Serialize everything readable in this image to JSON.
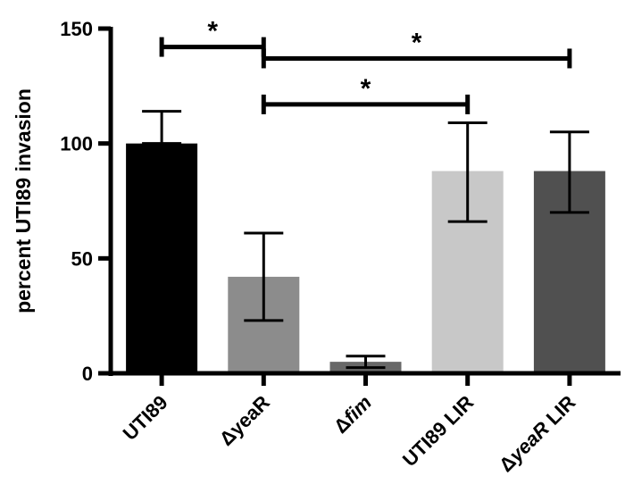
{
  "chart_data": {
    "type": "bar",
    "title": "",
    "xlabel": "",
    "ylabel": "percent UTI89 invasion",
    "ylim": [
      0,
      150
    ],
    "yticks": [
      0,
      50,
      100,
      150
    ],
    "grid": false,
    "categories": [
      {
        "parts": [
          {
            "text": "UTI89",
            "italic": false
          }
        ]
      },
      {
        "parts": [
          {
            "text": "Δ",
            "italic": false
          },
          {
            "text": "yeaR",
            "italic": false
          }
        ]
      },
      {
        "parts": [
          {
            "text": "Δ",
            "italic": false
          },
          {
            "text": "fim",
            "italic": true
          }
        ]
      },
      {
        "parts": [
          {
            "text": "UTI89 LIR",
            "italic": false
          }
        ]
      },
      {
        "parts": [
          {
            "text": "Δ",
            "italic": false
          },
          {
            "text": "yeaR",
            "italic": true
          },
          {
            "text": " LIR",
            "italic": false
          }
        ]
      }
    ],
    "values": [
      100,
      42,
      5,
      88,
      88
    ],
    "errors": [
      {
        "low": 100,
        "high": 114
      },
      {
        "low": 23,
        "high": 61
      },
      {
        "low": 2.5,
        "high": 7.5
      },
      {
        "low": 66,
        "high": 109
      },
      {
        "low": 70,
        "high": 105
      }
    ],
    "colors": [
      "#000000",
      "#8c8c8c",
      "#686868",
      "#c8c8c8",
      "#505050"
    ],
    "significance": [
      {
        "from": 0,
        "to": 1,
        "y": 142,
        "label": "*"
      },
      {
        "from": 1,
        "to": 4,
        "y": 137,
        "label": "*"
      },
      {
        "from": 1,
        "to": 3,
        "y": 117,
        "label": "*"
      }
    ]
  }
}
